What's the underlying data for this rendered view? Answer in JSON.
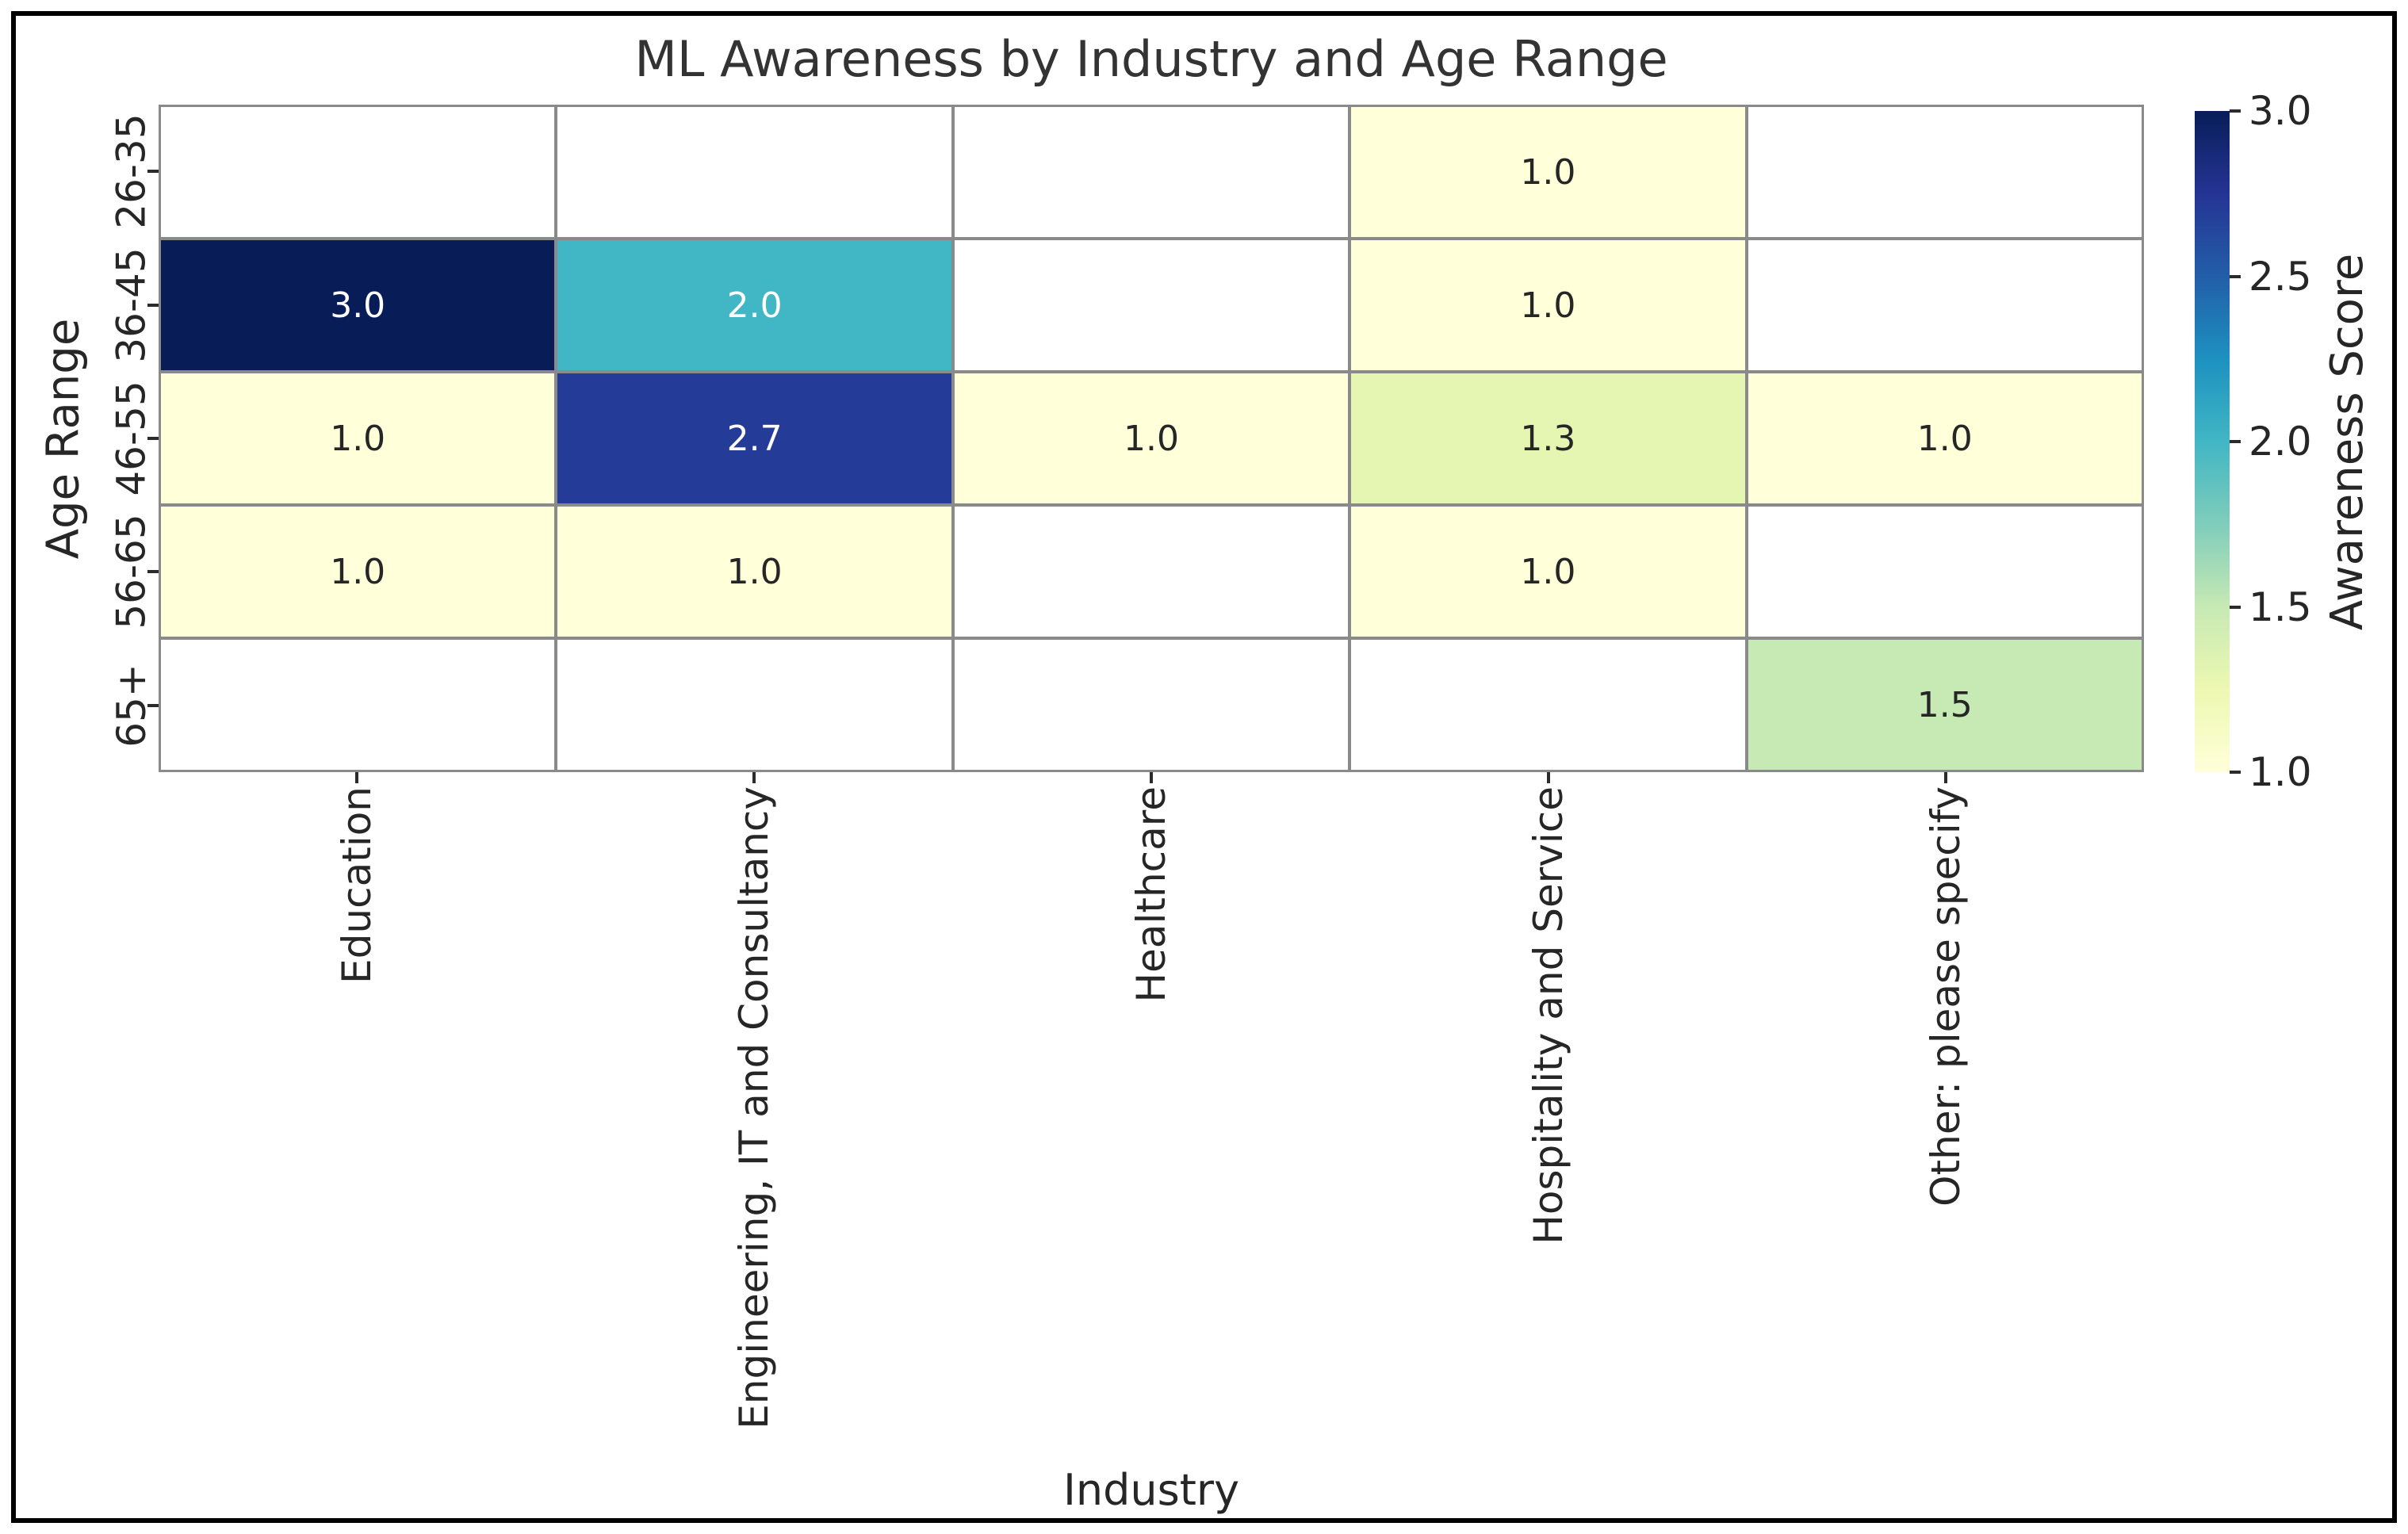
{
  "title": "ML Awareness by Industry and Age Range",
  "chart_data": {
    "type": "heatmap",
    "title": "ML Awareness by Industry and Age Range",
    "xlabel": "Industry",
    "ylabel": "Age Range",
    "categories_x": [
      "Education",
      "Engineering, IT and Consultancy",
      "Healthcare",
      "Hospitality and Service",
      "Other: please specify"
    ],
    "categories_y": [
      "26-35",
      "36-45",
      "46-55",
      "56-65",
      "65+"
    ],
    "values": [
      [
        null,
        null,
        null,
        1.0,
        null
      ],
      [
        3.0,
        2.0,
        null,
        1.0,
        null
      ],
      [
        1.0,
        2.7,
        1.0,
        1.3,
        1.0
      ],
      [
        1.0,
        1.0,
        null,
        1.0,
        null
      ],
      [
        null,
        null,
        null,
        null,
        1.5
      ]
    ],
    "vmin": 1.0,
    "vmax": 3.0,
    "grid_line_color": "#8a8a8a",
    "nan_cell_color": "#ffffff",
    "annotation_dark_text": "#262626",
    "annotation_light_text": "#ffffff",
    "colormap": "YlGnBu",
    "colormap_stops": [
      "#ffffd9",
      "#edf8b1",
      "#c7e9b4",
      "#7fcdbb",
      "#41b6c4",
      "#1d91c0",
      "#225ea8",
      "#253494",
      "#081d58"
    ],
    "colorbar": {
      "label": "Awareness Score",
      "ticks": [
        1.0,
        1.5,
        2.0,
        2.5,
        3.0
      ],
      "tick_labels": [
        "1.0",
        "1.5",
        "2.0",
        "2.5",
        "3.0"
      ]
    },
    "legend": "none",
    "grid_on": true
  }
}
